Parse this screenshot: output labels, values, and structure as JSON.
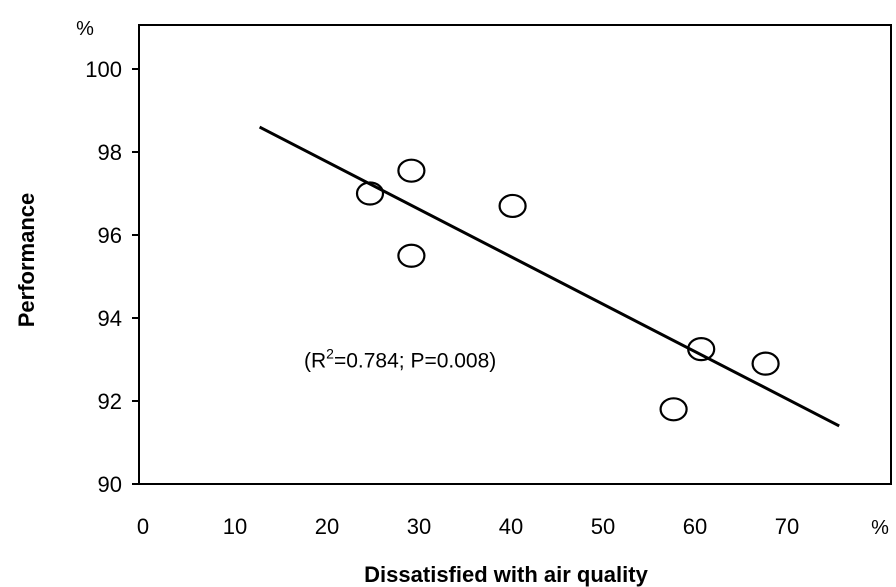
{
  "chart_data": {
    "type": "scatter",
    "title": "",
    "xlabel": "Dissatisfied with air quality",
    "ylabel": "Performance",
    "x_unit": "%",
    "y_unit": "%",
    "xlim": [
      0,
      75
    ],
    "ylim": [
      90,
      101
    ],
    "x_ticks": [
      0,
      10,
      20,
      30,
      40,
      50,
      60,
      70
    ],
    "y_ticks": [
      90,
      92,
      94,
      96,
      98,
      100
    ],
    "grid": false,
    "series": [
      {
        "points": [
          {
            "x": 25,
            "y": 97.0
          },
          {
            "x": 29.5,
            "y": 97.55
          },
          {
            "x": 29.5,
            "y": 95.5
          },
          {
            "x": 40.5,
            "y": 96.7
          },
          {
            "x": 58,
            "y": 91.8
          },
          {
            "x": 61,
            "y": 93.25
          },
          {
            "x": 68,
            "y": 92.9
          }
        ]
      }
    ],
    "trendline": {
      "x1": 13,
      "y1": 98.6,
      "x2": 76,
      "y2": 91.4
    },
    "annotation": {
      "text_prefix": "(R",
      "text_sup": "2",
      "text_suffix": "=0.784; P=0.008)",
      "x": 20,
      "y": 93.1
    }
  }
}
